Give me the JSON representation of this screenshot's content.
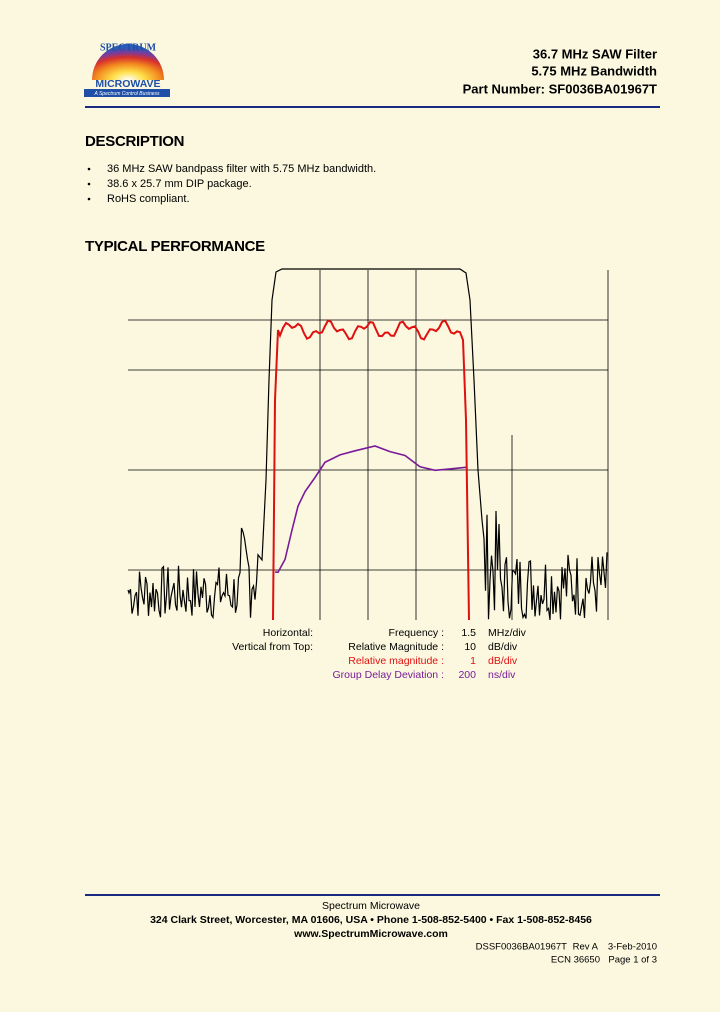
{
  "header": {
    "logo_top": "SPECTRUM",
    "logo_main": "MICROWAVE",
    "logo_tag": "A Spectrum Control Business",
    "title_lines": [
      "36.7 MHz SAW Filter",
      "5.75 MHz Bandwidth",
      "Part Number: SF0036BA01967T"
    ]
  },
  "description": {
    "heading": "DESCRIPTION",
    "bullets": [
      "36 MHz SAW bandpass filter with 5.75 MHz bandwidth.",
      "38.6 x 25.7 mm DIP package.",
      "RoHS compliant."
    ]
  },
  "performance": {
    "heading": "TYPICAL PERFORMANCE",
    "scale": [
      {
        "axis": "Horizontal:",
        "quantity": "Frequency :",
        "value": 1.5,
        "unit": "MHz/div"
      },
      {
        "axis": "Vertical from Top:",
        "quantity": "Relative Magnitude :",
        "value": 10,
        "unit": "dB/div"
      },
      {
        "quantity": "Relative magnitude :",
        "value": 1,
        "unit": "dB/div"
      },
      {
        "quantity": "Group Delay Deviation :",
        "value": 200,
        "unit": "ns/div"
      }
    ]
  },
  "footer": {
    "company": "Spectrum Microwave",
    "address": "324 Clark Street, Worcester, MA 01606, USA  •  Phone 1-508-852-5400  •  Fax 1-508-852-8456",
    "url": "www.SpectrumMicrowave.com",
    "doc_id": "DSSF0036BA01967T",
    "rev": "Rev A",
    "date": "3-Feb-2010",
    "ecn": "ECN 36650",
    "page": "Page 1 of 3"
  }
}
